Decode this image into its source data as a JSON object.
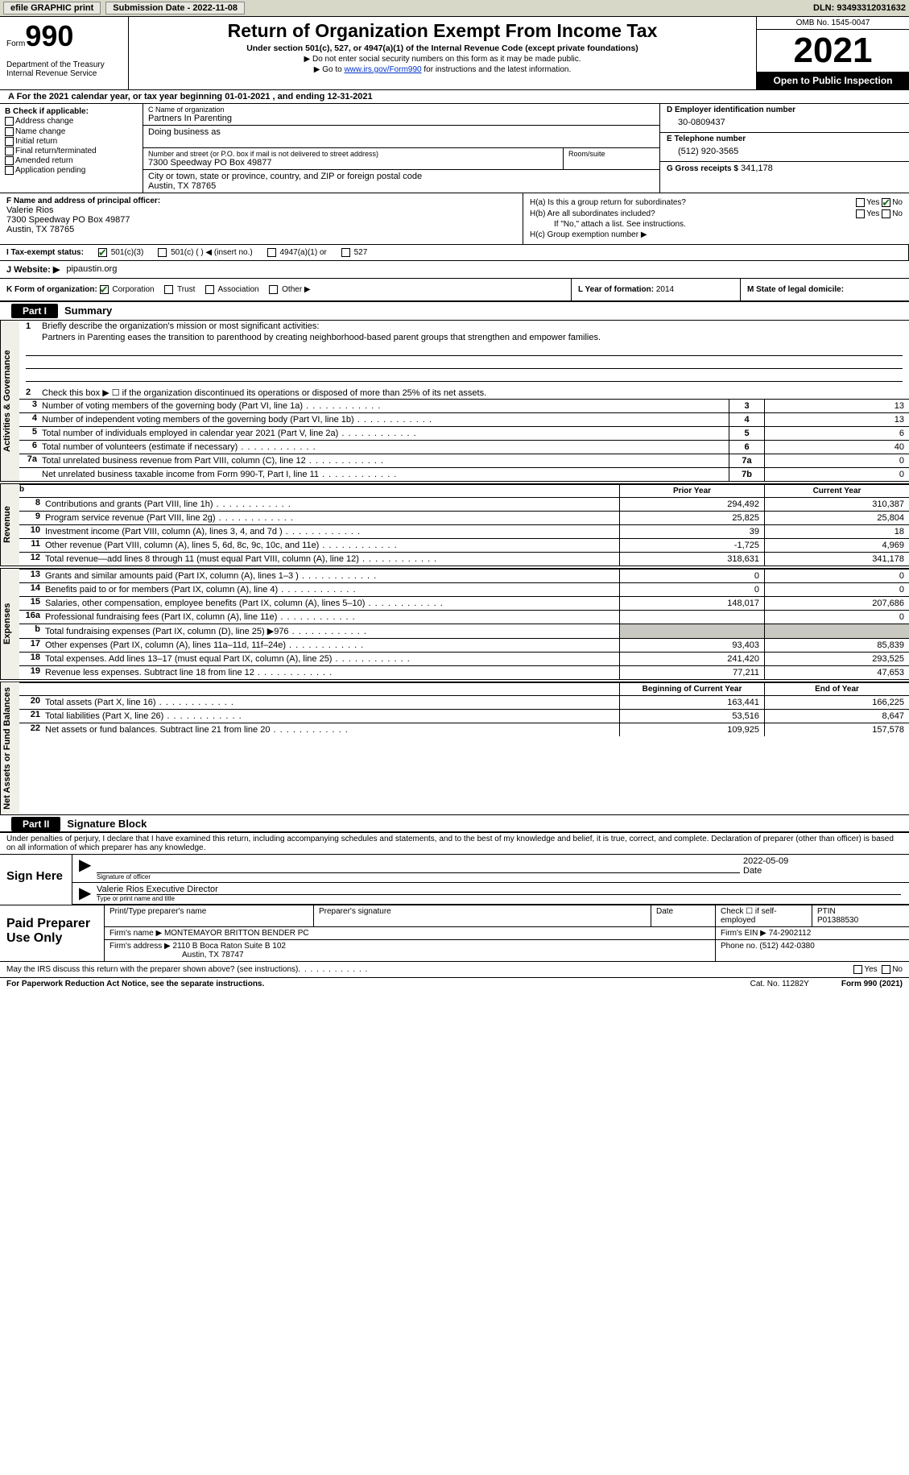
{
  "top": {
    "efile": "efile GRAPHIC print",
    "submission": "Submission Date - 2022-11-08",
    "dln": "DLN: 93493312031632"
  },
  "header": {
    "form_label": "Form",
    "form_num": "990",
    "dept": "Department of the Treasury\nInternal Revenue Service",
    "title": "Return of Organization Exempt From Income Tax",
    "subtitle": "Under section 501(c), 527, or 4947(a)(1) of the Internal Revenue Code (except private foundations)",
    "note1": "▶ Do not enter social security numbers on this form as it may be made public.",
    "note2_pre": "▶ Go to ",
    "note2_link": "www.irs.gov/Form990",
    "note2_post": " for instructions and the latest information.",
    "omb": "OMB No. 1545-0047",
    "year": "2021",
    "open": "Open to Public Inspection"
  },
  "cal_year": "A For the 2021 calendar year, or tax year beginning 01-01-2021   , and ending 12-31-2021",
  "b_label": "B Check if applicable:",
  "b_checks": [
    "Address change",
    "Name change",
    "Initial return",
    "Final return/terminated",
    "Amended return",
    "Application pending"
  ],
  "c_label": "C Name of organization",
  "org_name": "Partners In Parenting",
  "dba_label": "Doing business as",
  "addr_label": "Number and street (or P.O. box if mail is not delivered to street address)",
  "addr": "7300 Speedway PO Box 49877",
  "room_label": "Room/suite",
  "city_label": "City or town, state or province, country, and ZIP or foreign postal code",
  "city": "Austin, TX  78765",
  "d_label": "D Employer identification number",
  "ein": "30-0809437",
  "e_label": "E Telephone number",
  "phone": "(512) 920-3565",
  "g_label": "G Gross receipts $",
  "gross": "341,178",
  "f_label": "F Name and address of principal officer:",
  "officer_name": "Valerie Rios",
  "officer_addr1": "7300 Speedway PO Box 49877",
  "officer_addr2": "Austin, TX  78765",
  "ha_label": "H(a)  Is this a group return for subordinates?",
  "hb_label": "H(b)  Are all subordinates included?",
  "hb_note": "If \"No,\" attach a list. See instructions.",
  "hc_label": "H(c)  Group exemption number ▶",
  "yes": "Yes",
  "no": "No",
  "i_label": "I     Tax-exempt status:",
  "i_501c3": "501(c)(3)",
  "i_501c": "501(c) (  ) ◀ (insert no.)",
  "i_4947": "4947(a)(1) or",
  "i_527": "527",
  "j_label": "J   Website: ▶",
  "website": "pipaustin.org",
  "k_label": "K Form of organization:",
  "k_corp": "Corporation",
  "k_trust": "Trust",
  "k_assoc": "Association",
  "k_other": "Other ▶",
  "l_label": "L Year of formation:",
  "l_val": "2014",
  "m_label": "M State of legal domicile:",
  "part1": "Part I",
  "part1_title": "Summary",
  "mission_label": "Briefly describe the organization's mission or most significant activities:",
  "mission": "Partners in Parenting eases the transition to parenthood by creating neighborhood-based parent groups that strengthen and empower families.",
  "line2": "Check this box ▶ ☐  if the organization discontinued its operations or disposed of more than 25% of its net assets.",
  "gov_rows": [
    {
      "n": "3",
      "t": "Number of voting members of the governing body (Part VI, line 1a)",
      "box": "3",
      "v": "13"
    },
    {
      "n": "4",
      "t": "Number of independent voting members of the governing body (Part VI, line 1b)",
      "box": "4",
      "v": "13"
    },
    {
      "n": "5",
      "t": "Total number of individuals employed in calendar year 2021 (Part V, line 2a)",
      "box": "5",
      "v": "6"
    },
    {
      "n": "6",
      "t": "Total number of volunteers (estimate if necessary)",
      "box": "6",
      "v": "40"
    },
    {
      "n": "7a",
      "t": "Total unrelated business revenue from Part VIII, column (C), line 12",
      "box": "7a",
      "v": "0"
    },
    {
      "n": "",
      "t": "Net unrelated business taxable income from Form 990-T, Part I, line 11",
      "box": "7b",
      "v": "0"
    }
  ],
  "rev_hdr": {
    "prior": "Prior Year",
    "current": "Current Year"
  },
  "rev_rows": [
    {
      "n": "8",
      "t": "Contributions and grants (Part VIII, line 1h)",
      "p": "294,492",
      "c": "310,387"
    },
    {
      "n": "9",
      "t": "Program service revenue (Part VIII, line 2g)",
      "p": "25,825",
      "c": "25,804"
    },
    {
      "n": "10",
      "t": "Investment income (Part VIII, column (A), lines 3, 4, and 7d )",
      "p": "39",
      "c": "18"
    },
    {
      "n": "11",
      "t": "Other revenue (Part VIII, column (A), lines 5, 6d, 8c, 9c, 10c, and 11e)",
      "p": "-1,725",
      "c": "4,969"
    },
    {
      "n": "12",
      "t": "Total revenue—add lines 8 through 11 (must equal Part VIII, column (A), line 12)",
      "p": "318,631",
      "c": "341,178"
    }
  ],
  "exp_rows": [
    {
      "n": "13",
      "t": "Grants and similar amounts paid (Part IX, column (A), lines 1–3 )",
      "p": "0",
      "c": "0"
    },
    {
      "n": "14",
      "t": "Benefits paid to or for members (Part IX, column (A), line 4)",
      "p": "0",
      "c": "0"
    },
    {
      "n": "15",
      "t": "Salaries, other compensation, employee benefits (Part IX, column (A), lines 5–10)",
      "p": "148,017",
      "c": "207,686"
    },
    {
      "n": "16a",
      "t": "Professional fundraising fees (Part IX, column (A), line 11e)",
      "p": "",
      "c": "0"
    },
    {
      "n": "b",
      "t": "Total fundraising expenses (Part IX, column (D), line 25) ▶976",
      "p": "shaded",
      "c": "shaded"
    },
    {
      "n": "17",
      "t": "Other expenses (Part IX, column (A), lines 11a–11d, 11f–24e)",
      "p": "93,403",
      "c": "85,839"
    },
    {
      "n": "18",
      "t": "Total expenses. Add lines 13–17 (must equal Part IX, column (A), line 25)",
      "p": "241,420",
      "c": "293,525"
    },
    {
      "n": "19",
      "t": "Revenue less expenses. Subtract line 18 from line 12",
      "p": "77,211",
      "c": "47,653"
    }
  ],
  "na_hdr": {
    "begin": "Beginning of Current Year",
    "end": "End of Year"
  },
  "na_rows": [
    {
      "n": "20",
      "t": "Total assets (Part X, line 16)",
      "p": "163,441",
      "c": "166,225"
    },
    {
      "n": "21",
      "t": "Total liabilities (Part X, line 26)",
      "p": "53,516",
      "c": "8,647"
    },
    {
      "n": "22",
      "t": "Net assets or fund balances. Subtract line 21 from line 20",
      "p": "109,925",
      "c": "157,578"
    }
  ],
  "vtabs": {
    "gov": "Activities & Governance",
    "rev": "Revenue",
    "exp": "Expenses",
    "na": "Net Assets or\nFund Balances"
  },
  "part2": "Part II",
  "part2_title": "Signature Block",
  "sig_decl": "Under penalties of perjury, I declare that I have examined this return, including accompanying schedules and statements, and to the best of my knowledge and belief, it is true, correct, and complete. Declaration of preparer (other than officer) is based on all information of which preparer has any knowledge.",
  "sign_here": "Sign Here",
  "sig_officer_lbl": "Signature of officer",
  "sig_date": "2022-05-09",
  "sig_date_lbl": "Date",
  "sig_name": "Valerie Rios  Executive Director",
  "sig_name_lbl": "Type or print name and title",
  "paid": "Paid Preparer Use Only",
  "prep_hdr": {
    "name": "Print/Type preparer's name",
    "sig": "Preparer's signature",
    "date": "Date",
    "check": "Check ☐ if self-employed",
    "ptin": "PTIN"
  },
  "ptin": "P01388530",
  "firm_name_lbl": "Firm's name    ▶",
  "firm_name": "MONTEMAYOR BRITTON BENDER PC",
  "firm_ein_lbl": "Firm's EIN ▶",
  "firm_ein": "74-2902112",
  "firm_addr_lbl": "Firm's address ▶",
  "firm_addr1": "2110 B Boca Raton Suite B 102",
  "firm_addr2": "Austin, TX  78747",
  "firm_phone_lbl": "Phone no.",
  "firm_phone": "(512) 442-0380",
  "may_irs": "May the IRS discuss this return with the preparer shown above? (see instructions)",
  "footer_paperwork": "For Paperwork Reduction Act Notice, see the separate instructions.",
  "footer_cat": "Cat. No. 11282Y",
  "footer_form": "Form 990 (2021)"
}
